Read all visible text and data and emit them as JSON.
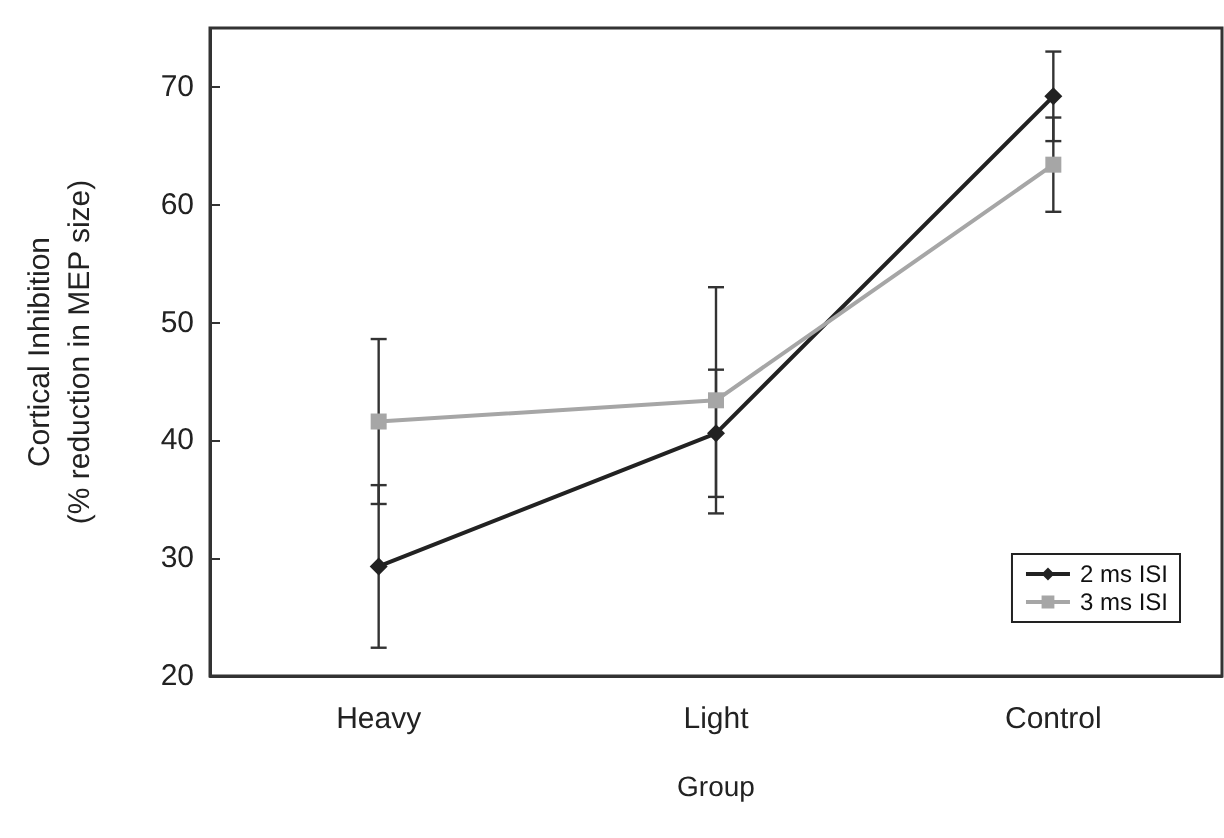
{
  "chart_data": {
    "type": "line",
    "xlabel": "Group",
    "ylabel": "Cortical Inhibition\n(% reduction in MEP size)",
    "categories": [
      "Heavy",
      "Light",
      "Control"
    ],
    "series": [
      {
        "name": "2 ms ISI",
        "color": "#222222",
        "marker": "diamond",
        "values": [
          29.3,
          40.6,
          69.2
        ],
        "errors": [
          6.9,
          5.4,
          3.8
        ]
      },
      {
        "name": "3 ms ISI",
        "color": "#a6a6a6",
        "marker": "square",
        "values": [
          41.6,
          43.4,
          63.4
        ],
        "errors": [
          7,
          9.6,
          4
        ]
      }
    ],
    "ylim": [
      20,
      75
    ],
    "yticks": [
      20,
      30,
      40,
      50,
      60,
      70
    ],
    "grid": false,
    "legend": "bottom right"
  }
}
